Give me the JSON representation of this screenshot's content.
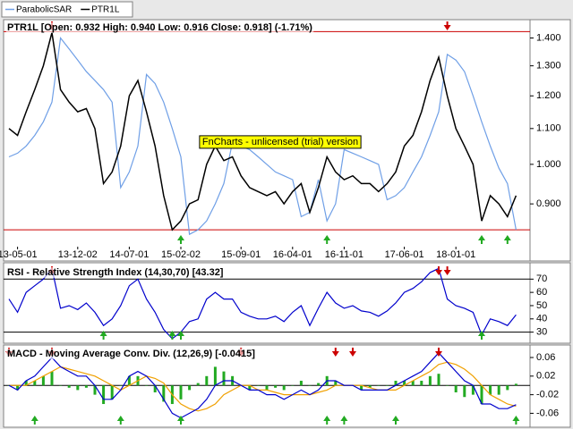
{
  "watermark": "FnCharts - unlicensed (trial) version",
  "chart_data": [
    {
      "type": "line",
      "title": "PTR1L [Open: 0.932  High: 0.940  Low: 0.916  Close: 0.918] (-1.71%)",
      "log": true,
      "ylim": [
        0.805,
        1.47
      ],
      "yticks": [
        {
          "value": 0.9,
          "label": "0.900"
        },
        {
          "value": 1.0,
          "label": "1.000"
        },
        {
          "value": 1.1,
          "label": "1.100"
        },
        {
          "value": 1.2,
          "label": "1.200"
        },
        {
          "value": 1.3,
          "label": "1.300"
        },
        {
          "value": 1.4,
          "label": "1.400"
        }
      ],
      "xticks": [
        {
          "value": 1,
          "label": "13-05-01"
        },
        {
          "value": 8,
          "label": "13-12-02"
        },
        {
          "value": 14,
          "label": "14-07-01"
        },
        {
          "value": 20,
          "label": "15-02-02"
        },
        {
          "value": 27,
          "label": "15-09-01"
        },
        {
          "value": 33,
          "label": "16-04-01"
        },
        {
          "value": 39,
          "label": "16-11-01"
        },
        {
          "value": 46,
          "label": "17-06-01"
        },
        {
          "value": 52,
          "label": "18-01-01"
        }
      ],
      "hlines": [
        1.424,
        0.84
      ],
      "hline_color": "#cc0000",
      "series": [
        {
          "name": "ParabolicSAR",
          "color": "#6f9fe6",
          "values": [
            1.02,
            1.03,
            1.05,
            1.08,
            1.12,
            1.18,
            1.4,
            1.36,
            1.32,
            1.28,
            1.25,
            1.22,
            1.18,
            0.94,
            0.98,
            1.05,
            1.27,
            1.24,
            1.18,
            1.1,
            1.02,
            0.83,
            0.84,
            0.86,
            0.9,
            0.95,
            1.06,
            1.05,
            1.04,
            1.02,
            1.0,
            0.98,
            0.97,
            0.96,
            0.87,
            0.88,
            0.96,
            0.86,
            0.9,
            1.04,
            1.03,
            1.02,
            1.01,
            1.0,
            0.91,
            0.92,
            0.94,
            0.98,
            1.02,
            1.08,
            1.15,
            1.34,
            1.32,
            1.28,
            1.2,
            1.12,
            1.05,
            0.99,
            0.95,
            0.84
          ]
        },
        {
          "name": "PTR1L",
          "color": "#000000",
          "values": [
            1.1,
            1.08,
            1.15,
            1.22,
            1.3,
            1.42,
            1.22,
            1.18,
            1.15,
            1.16,
            1.1,
            0.95,
            0.98,
            1.05,
            1.2,
            1.25,
            1.15,
            1.05,
            0.92,
            0.84,
            0.86,
            0.9,
            0.91,
            1.0,
            1.05,
            1.01,
            1.02,
            0.97,
            0.94,
            0.93,
            0.92,
            0.93,
            0.9,
            0.93,
            0.95,
            0.88,
            0.94,
            1.02,
            0.98,
            0.96,
            0.97,
            0.95,
            0.95,
            0.93,
            0.95,
            0.98,
            1.05,
            1.08,
            1.15,
            1.25,
            1.33,
            1.2,
            1.1,
            1.05,
            1.0,
            0.86,
            0.92,
            0.9,
            0.87,
            0.92
          ]
        }
      ],
      "buy": [
        20,
        37,
        55,
        58
      ],
      "sell": [
        5,
        51
      ]
    },
    {
      "type": "line",
      "title": "RSI - Relative Strength Index (14,30,70) [43.32]",
      "ylim": [
        23,
        81
      ],
      "yticks": [
        30,
        40,
        50,
        60,
        70
      ],
      "hlines": [
        70,
        30
      ],
      "hline_color": "#000000",
      "series": [
        {
          "color": "#0000cc",
          "values": [
            55,
            45,
            60,
            65,
            70,
            78,
            48,
            50,
            47,
            52,
            45,
            35,
            40,
            50,
            65,
            70,
            55,
            45,
            32,
            25,
            30,
            38,
            40,
            55,
            60,
            55,
            55,
            45,
            42,
            40,
            40,
            42,
            38,
            45,
            50,
            35,
            48,
            60,
            52,
            48,
            50,
            46,
            45,
            42,
            46,
            52,
            60,
            63,
            68,
            75,
            78,
            55,
            50,
            48,
            45,
            28,
            40,
            38,
            35,
            43
          ]
        }
      ],
      "buy": [
        11,
        19,
        20,
        55
      ],
      "sell": [
        5,
        50,
        51
      ]
    },
    {
      "type": "line",
      "title": "MACD - Moving Average Conv. Div. (12,26,9) [-0.0415]",
      "ylim": [
        -0.088,
        0.085
      ],
      "yticks": [
        -0.06,
        -0.02,
        0.02,
        0.06
      ],
      "hlines": [
        0
      ],
      "hline_color": "#000000",
      "series": [
        {
          "type": "bar",
          "color": "#22aa22",
          "values": [
            0,
            -0.01,
            0.01,
            0.01,
            0.02,
            0.03,
            0,
            -0.005,
            -0.01,
            -0.005,
            -0.02,
            -0.04,
            -0.03,
            0,
            0.02,
            0.02,
            0,
            -0.015,
            -0.035,
            -0.04,
            -0.03,
            -0.01,
            0.005,
            0.02,
            0.04,
            0.03,
            0.02,
            0,
            -0.01,
            0,
            -0.01,
            -0.005,
            -0.01,
            0,
            0.01,
            0,
            0.005,
            0.02,
            0.01,
            0,
            0,
            -0.01,
            -0.005,
            0,
            0,
            0.01,
            0.01,
            0.01,
            0.01,
            0.02,
            0.025,
            0,
            -0.015,
            -0.025,
            -0.02,
            -0.04,
            -0.02,
            -0.02,
            -0.01,
            0.0035
          ]
        },
        {
          "color": "#f0a000",
          "values": [
            0,
            0,
            0,
            0.01,
            0.02,
            0.03,
            0.04,
            0.035,
            0.03,
            0.025,
            0.02,
            0.01,
            0,
            -0.01,
            0,
            0.01,
            0.02,
            0.015,
            0.005,
            -0.02,
            -0.04,
            -0.05,
            -0.055,
            -0.05,
            -0.04,
            -0.02,
            -0.01,
            0,
            0,
            -0.01,
            -0.01,
            -0.015,
            -0.02,
            -0.02,
            -0.02,
            -0.02,
            -0.015,
            -0.01,
            0,
            0,
            0,
            0,
            -0.005,
            -0.01,
            -0.01,
            -0.01,
            0,
            0.01,
            0.02,
            0.03,
            0.045,
            0.05,
            0.045,
            0.035,
            0.02,
            0,
            -0.02,
            -0.03,
            -0.04,
            -0.045
          ]
        },
        {
          "color": "#0000cc",
          "values": [
            0,
            -0.01,
            0.01,
            0.02,
            0.04,
            0.06,
            0.04,
            0.03,
            0.02,
            0.02,
            0,
            -0.03,
            -0.03,
            -0.01,
            0.02,
            0.03,
            0.02,
            0,
            -0.03,
            -0.06,
            -0.07,
            -0.06,
            -0.05,
            -0.03,
            0,
            0.01,
            0.01,
            0,
            -0.01,
            -0.01,
            -0.02,
            -0.02,
            -0.03,
            -0.02,
            -0.01,
            -0.02,
            -0.01,
            0.01,
            0.01,
            0,
            0,
            -0.01,
            -0.01,
            -0.01,
            -0.01,
            0,
            0.01,
            0.02,
            0.03,
            0.05,
            0.07,
            0.05,
            0.03,
            0.01,
            0,
            -0.04,
            -0.04,
            -0.05,
            -0.05,
            -0.0415
          ]
        }
      ],
      "buy": [
        3,
        13,
        20,
        37,
        39,
        45,
        59
      ],
      "sell": [
        0,
        5,
        27,
        38,
        40,
        50
      ]
    }
  ]
}
